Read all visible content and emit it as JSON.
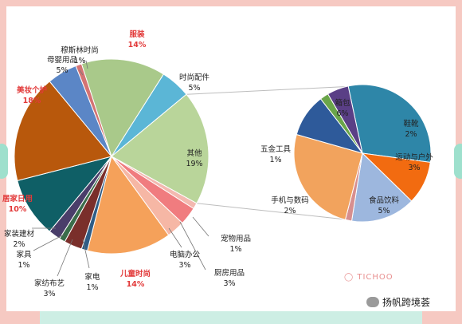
{
  "chart_data": [
    {
      "type": "pie",
      "slices": [
        {
          "label": "服装",
          "value": 14,
          "pct": "14%",
          "color": "#a9c98a",
          "highlight": true
        },
        {
          "label": "时尚配件",
          "value": 5,
          "pct": "5%",
          "color": "#5bb6d6",
          "highlight": false
        },
        {
          "label": "其他",
          "value": 19,
          "pct": "19%",
          "color": "#b9d59a",
          "highlight": false
        },
        {
          "label": "宠物用品",
          "value": 1,
          "pct": "1%",
          "color": "#f3b9b0",
          "highlight": false
        },
        {
          "label": "厨房用品",
          "value": 3,
          "pct": "3%",
          "color": "#f07c7f",
          "highlight": false
        },
        {
          "label": "电脑办公",
          "value": 3,
          "pct": "3%",
          "color": "#f6b7a5",
          "highlight": false
        },
        {
          "label": "儿童时尚",
          "value": 14,
          "pct": "14%",
          "color": "#f5a15a",
          "highlight": true
        },
        {
          "label": "家电",
          "value": 1,
          "pct": "1%",
          "color": "#2f5d86",
          "highlight": false
        },
        {
          "label": "家纺布艺",
          "value": 3,
          "pct": "3%",
          "color": "#7a2f2b",
          "highlight": false
        },
        {
          "label": "家具",
          "value": 1,
          "pct": "1%",
          "color": "#3a6d4a",
          "highlight": false
        },
        {
          "label": "家装建材",
          "value": 2,
          "pct": "2%",
          "color": "#4a3e6a",
          "highlight": false
        },
        {
          "label": "居家日用",
          "value": 10,
          "pct": "10%",
          "color": "#0f5f66",
          "highlight": true
        },
        {
          "label": "美妆个护",
          "value": 18,
          "pct": "18%",
          "color": "#b8580c",
          "highlight": true
        },
        {
          "label": "母婴用品",
          "value": 5,
          "pct": "5%",
          "color": "#5b86c6",
          "highlight": false
        },
        {
          "label": "穆斯林时尚",
          "value": 1,
          "pct": "1%",
          "color": "#d47373",
          "highlight": false
        }
      ]
    },
    {
      "type": "pie",
      "slices": [
        {
          "label": "箱包",
          "value": 6,
          "pct": "6%",
          "color": "#2e86a8"
        },
        {
          "label": "鞋靴",
          "value": 2,
          "pct": "2%",
          "color": "#f26b10"
        },
        {
          "label": "运动与户外",
          "value": 3,
          "pct": "3%",
          "color": "#9db7de"
        },
        {
          "label": "",
          "value": 0.3,
          "pct": "",
          "color": "#d78f8f"
        },
        {
          "label": "食品饮料",
          "value": 5,
          "pct": "5%",
          "color": "#f2a35d"
        },
        {
          "label": "手机与数码",
          "value": 2,
          "pct": "2%",
          "color": "#2e5a9a"
        },
        {
          "label": "",
          "value": 0.4,
          "pct": "",
          "color": "#6aa54a"
        },
        {
          "label": "五金工具",
          "value": 1,
          "pct": "1%",
          "color": "#5a3f86"
        }
      ]
    }
  ],
  "brand": "◯ TICHOO",
  "footer": "扬帆跨境荟",
  "colors": {
    "background": "#f6c9c2",
    "tabs": "#9ee0cd",
    "strip": "#cdeee4",
    "highlight_text": "#e23a3a"
  }
}
